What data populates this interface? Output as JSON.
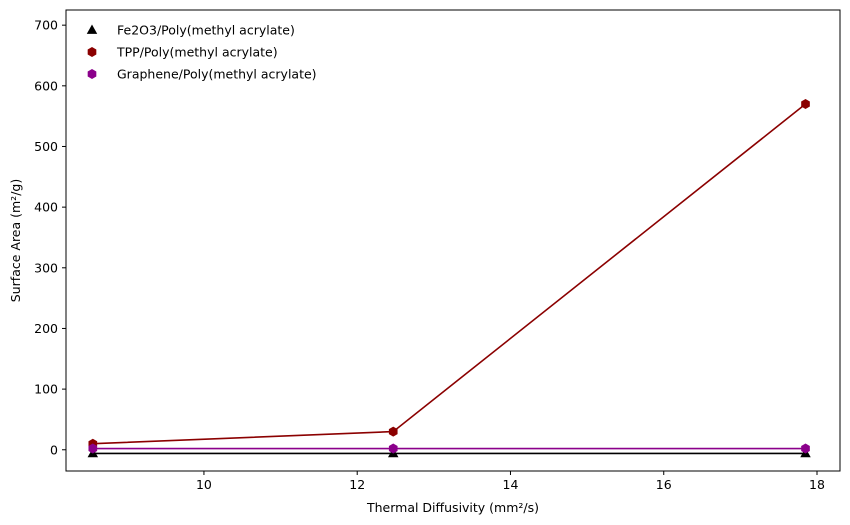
{
  "chart_data": {
    "type": "scatter",
    "xlabel": "Thermal Diffusivity (mm²/s)",
    "ylabel": "Surface Area (m²/g)",
    "xlim": [
      8.2,
      18.3
    ],
    "ylim": [
      -35,
      725
    ],
    "xticks": [
      10,
      12,
      14,
      16,
      18
    ],
    "yticks": [
      0,
      100,
      200,
      300,
      400,
      500,
      600,
      700
    ],
    "grid": false,
    "legend_position": "top-left",
    "series": [
      {
        "name": "Fe2O3/Poly(methyl acrylate)",
        "marker": "triangle",
        "color": "#000000",
        "x": [
          8.55,
          12.47,
          17.85
        ],
        "y": [
          -6,
          -6,
          -6
        ]
      },
      {
        "name": "TPP/Poly(methyl acrylate)",
        "marker": "hexagon",
        "color": "#8b0000",
        "x": [
          8.55,
          12.47,
          17.85
        ],
        "y": [
          10,
          30,
          570
        ]
      },
      {
        "name": "Graphene/Poly(methyl acrylate)",
        "marker": "hexagon",
        "color": "#8b008b",
        "x": [
          8.55,
          12.47,
          17.85
        ],
        "y": [
          2,
          2,
          2
        ]
      }
    ]
  }
}
